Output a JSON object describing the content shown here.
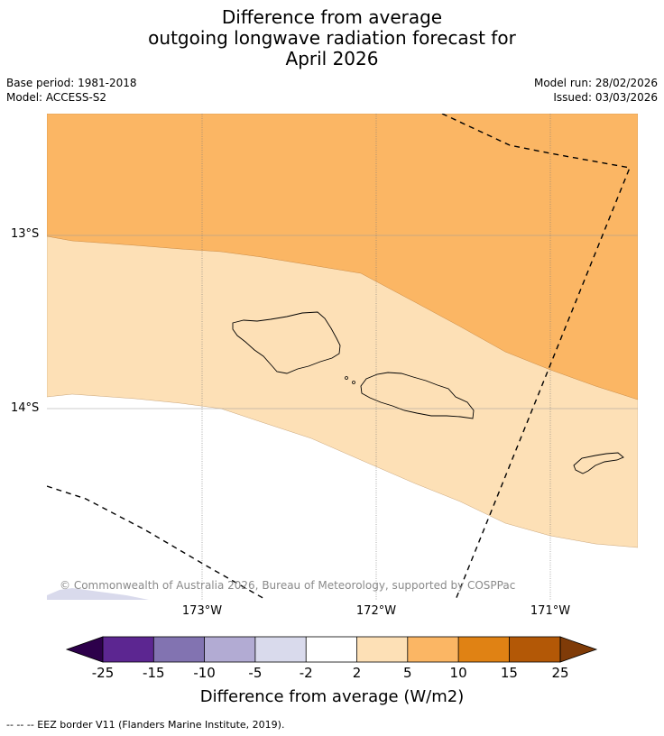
{
  "title": {
    "line1": "Difference from average",
    "line2": "outgoing longwave radiation forecast for",
    "line3": "April 2026"
  },
  "meta": {
    "base_period": "Base period: 1981-2018",
    "model": "Model: ACCESS-S2",
    "model_run": "Model run: 28/02/2026",
    "issued": "Issued: 03/03/2026"
  },
  "map": {
    "lat_labels": [
      "13°S",
      "14°S"
    ],
    "lon_labels": [
      "173°W",
      "172°W",
      "171°W"
    ],
    "copyright": "© Commonwealth of Australia 2026, Bureau of Meteorology, supported by COSPPac",
    "fill_colors": {
      "band_5_10": "#fbb664",
      "band_2_5": "#fde0b6",
      "band_minus5_minus2": "#d9daec",
      "land_outline": "#000000",
      "gridline": "#999999"
    }
  },
  "colorbar": {
    "tick_labels": [
      "-25",
      "-15",
      "-10",
      "-5",
      "-2",
      "2",
      "5",
      "10",
      "15",
      "25"
    ],
    "colors": [
      "#2d004b",
      "#5c2691",
      "#8273b1",
      "#b2abd3",
      "#d9daec",
      "#ffffff",
      "#fde0b6",
      "#fbb664",
      "#e08214",
      "#b35806",
      "#7f3b08"
    ],
    "label": "Difference from average (W/m2)"
  },
  "legend": {
    "eez": "--  --  -- EEZ border V11 (Flanders Marine Institute, 2019)."
  }
}
